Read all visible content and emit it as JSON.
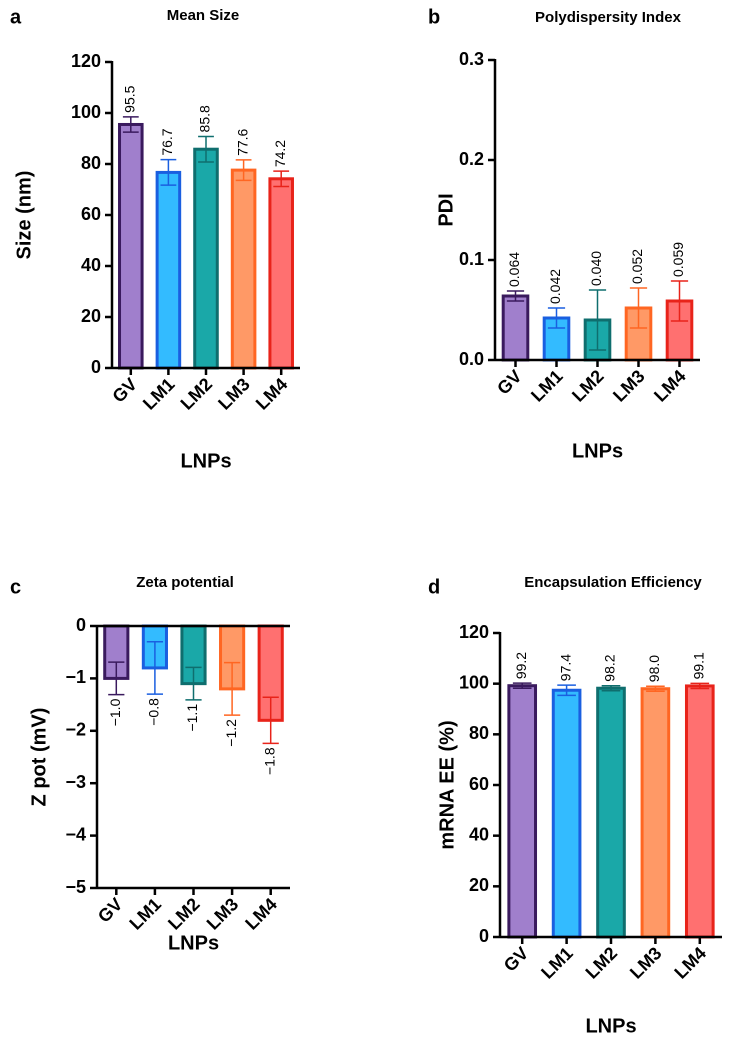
{
  "chart_data": [
    {
      "type": "bar",
      "label": "a",
      "title": "Mean Size",
      "x_label": "LNPs",
      "y_label": "Size (nm)",
      "categories": [
        "GV",
        "LM1",
        "LM2",
        "LM3",
        "LM4"
      ],
      "values": [
        95.5,
        76.7,
        85.8,
        77.6,
        74.2
      ],
      "errors": [
        3,
        5,
        5,
        4,
        3
      ],
      "colors": [
        "#a07fcc",
        "#33bbff",
        "#1aa8a8",
        "#ff9966",
        "#ff7070"
      ],
      "edge_colors": [
        "#3a1a5e",
        "#1a5fe0",
        "#0f6e6e",
        "#ff6622",
        "#e8231a"
      ],
      "ylim": [
        0,
        120
      ],
      "yticks": [
        0,
        20,
        40,
        60,
        80,
        100,
        120
      ]
    },
    {
      "type": "bar",
      "label": "b",
      "title": "Polydispersity Index",
      "x_label": "LNPs",
      "y_label": "PDI",
      "categories": [
        "GV",
        "LM1",
        "LM2",
        "LM3",
        "LM4"
      ],
      "values": [
        0.064,
        0.042,
        0.04,
        0.052,
        0.059
      ],
      "value_labels": [
        "0.064",
        "0.042",
        "0.040",
        "0.052",
        "0.059"
      ],
      "errors": [
        0.005,
        0.01,
        0.03,
        0.02,
        0.02
      ],
      "colors": [
        "#a07fcc",
        "#33bbff",
        "#1aa8a8",
        "#ff9966",
        "#ff7070"
      ],
      "edge_colors": [
        "#3a1a5e",
        "#1a5fe0",
        "#0f6e6e",
        "#ff6622",
        "#e8231a"
      ],
      "ylim": [
        0,
        0.3
      ],
      "yticks": [
        {
          "value": 0,
          "label": "0.0"
        },
        0.1,
        0.2,
        0.3
      ]
    },
    {
      "type": "bar",
      "label": "c",
      "title": "Zeta potential",
      "x_label": "LNPs",
      "y_label": "Z pot (mV)",
      "categories": [
        "GV",
        "LM1",
        "LM2",
        "LM3",
        "LM4"
      ],
      "values": [
        -1.0,
        -0.8,
        -1.1,
        -1.2,
        -1.8
      ],
      "value_labels": [
        "−1.0",
        "−0.8",
        "−1.1",
        "−1.2",
        "−1.8"
      ],
      "errors": [
        0.31,
        0.5,
        0.31,
        0.5,
        0.44
      ],
      "colors": [
        "#a07fcc",
        "#33bbff",
        "#1aa8a8",
        "#ff9966",
        "#ff7070"
      ],
      "edge_colors": [
        "#3a1a5e",
        "#1a5fe0",
        "#0f6e6e",
        "#ff6622",
        "#e8231a"
      ],
      "ylim": [
        -5,
        0
      ],
      "yticks": [
        {
          "value": -5,
          "label": "−5"
        },
        {
          "value": -4,
          "label": "−4"
        },
        {
          "value": -3,
          "label": "−3"
        },
        {
          "value": -2,
          "label": "−2"
        },
        {
          "value": -1,
          "label": "−1"
        },
        0
      ]
    },
    {
      "type": "bar",
      "label": "d",
      "title": "Encapsulation Efficiency",
      "x_label": "LNPs",
      "y_label": "mRNA EE (%)",
      "categories": [
        "GV",
        "LM1",
        "LM2",
        "LM3",
        "LM4"
      ],
      "values": [
        99.2,
        97.4,
        98.2,
        98.0,
        99.1
      ],
      "value_labels": [
        "99.2",
        "97.4",
        "98.2",
        "98.0",
        "99.1"
      ],
      "errors": [
        1,
        2,
        1,
        1,
        1
      ],
      "colors": [
        "#a07fcc",
        "#33bbff",
        "#1aa8a8",
        "#ff9966",
        "#ff7070"
      ],
      "edge_colors": [
        "#3a1a5e",
        "#1a5fe0",
        "#0f6e6e",
        "#ff6622",
        "#e8231a"
      ],
      "ylim": [
        0,
        120
      ],
      "yticks": [
        0,
        20,
        40,
        60,
        80,
        100,
        120
      ]
    }
  ]
}
